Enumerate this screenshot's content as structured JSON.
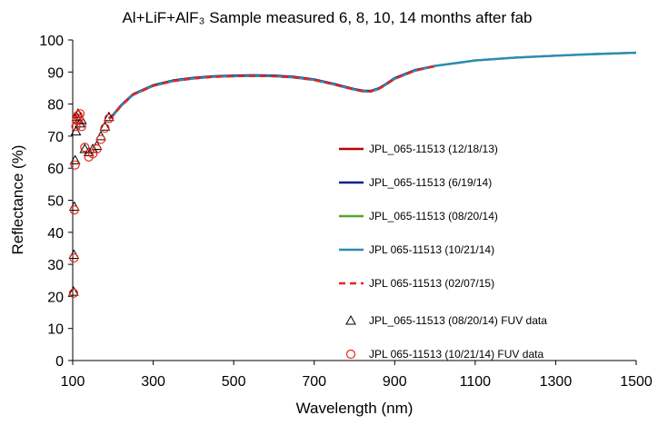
{
  "chart_data": {
    "type": "line",
    "title": "Al+LiF+AlF₃  Sample measured 6, 8, 10, 14 months after fab",
    "xlabel": "Wavelength (nm)",
    "ylabel": "Reflectance (%)",
    "xlim": [
      100,
      1500
    ],
    "ylim": [
      0,
      100
    ],
    "xticks": [
      "100",
      "300",
      "500",
      "700",
      "900",
      "1100",
      "1300",
      "1500"
    ],
    "yticks": [
      "0",
      "10",
      "20",
      "30",
      "40",
      "50",
      "60",
      "70",
      "80",
      "90",
      "100"
    ],
    "grid": false,
    "legend_position": "right",
    "series": [
      {
        "name": "JPL_065-11513 (12/18/13)",
        "kind": "line",
        "color": "#c00000",
        "dash": "solid",
        "x": [
          190,
          200,
          220,
          250,
          300,
          350,
          400,
          450,
          500,
          550,
          600,
          650,
          700,
          750,
          780,
          800,
          820,
          840,
          860,
          880,
          900,
          950,
          1000
        ],
        "y": [
          75.5,
          76.5,
          79.5,
          83.0,
          85.8,
          87.3,
          88.1,
          88.6,
          88.8,
          88.9,
          88.8,
          88.4,
          87.6,
          86.2,
          85.2,
          84.6,
          84.1,
          84.0,
          84.8,
          86.3,
          88.0,
          90.5,
          91.8
        ]
      },
      {
        "name": "JPL_065-11513 (6/19/14)",
        "kind": "line",
        "color": "#002090",
        "dash": "solid",
        "x": [
          190,
          200,
          220,
          250,
          300,
          350,
          400,
          450,
          500,
          550,
          600,
          650,
          700,
          750,
          780,
          800,
          820,
          840,
          860,
          880,
          900,
          950,
          1000
        ],
        "y": [
          75.6,
          76.6,
          79.6,
          83.1,
          85.9,
          87.4,
          88.2,
          88.7,
          88.9,
          89.0,
          88.9,
          88.5,
          87.7,
          86.3,
          85.3,
          84.7,
          84.2,
          84.1,
          84.9,
          86.4,
          88.1,
          90.6,
          91.9
        ]
      },
      {
        "name": "JPL_065-11513 (08/20/14)",
        "kind": "line",
        "color": "#4ea72e",
        "dash": "solid",
        "x": [
          190,
          200,
          220,
          250,
          300,
          350,
          400,
          450,
          500,
          550,
          600,
          650,
          700,
          750,
          780,
          800,
          820,
          840,
          860,
          880,
          900,
          950,
          1000,
          1100,
          1200,
          1300,
          1400,
          1500
        ],
        "y": [
          75.4,
          76.4,
          79.4,
          82.9,
          85.7,
          87.2,
          88.0,
          88.5,
          88.7,
          88.8,
          88.7,
          88.3,
          87.5,
          86.1,
          85.1,
          84.5,
          84.0,
          83.9,
          84.7,
          86.2,
          87.9,
          90.4,
          91.9,
          93.6,
          94.5,
          95.1,
          95.6,
          96.0
        ]
      },
      {
        "name": "JPL 065-11513 (10/21/14)",
        "kind": "line",
        "color": "#2e8bb8",
        "dash": "solid",
        "x": [
          190,
          200,
          220,
          250,
          300,
          350,
          400,
          450,
          500,
          550,
          600,
          650,
          700,
          750,
          780,
          800,
          820,
          840,
          860,
          880,
          900,
          950,
          1000,
          1100,
          1200,
          1300,
          1400,
          1500
        ],
        "y": [
          75.4,
          76.4,
          79.4,
          82.9,
          85.7,
          87.2,
          88.0,
          88.5,
          88.7,
          88.8,
          88.7,
          88.3,
          87.5,
          86.1,
          85.1,
          84.5,
          84.0,
          83.9,
          84.7,
          86.2,
          87.9,
          90.4,
          91.9,
          93.6,
          94.5,
          95.1,
          95.6,
          96.0
        ]
      },
      {
        "name": "JPL 065-11513 (02/07/15)",
        "kind": "line",
        "color": "#e8251b",
        "dash": "dashed",
        "x": [
          190,
          200,
          220,
          250,
          300,
          350,
          400,
          450,
          500,
          550,
          600,
          650,
          700,
          750,
          780,
          800,
          820,
          840,
          860,
          880,
          900,
          950,
          1000
        ],
        "y": [
          75.4,
          76.4,
          79.4,
          82.9,
          85.7,
          87.2,
          88.0,
          88.5,
          88.7,
          88.8,
          88.7,
          88.3,
          87.5,
          86.1,
          85.1,
          84.5,
          84.0,
          83.9,
          84.7,
          86.2,
          87.9,
          90.4,
          91.8
        ]
      },
      {
        "name": "JPL_065-11513 (08/20/14) FUV data",
        "kind": "marker",
        "marker": "triangle",
        "color": "#000000",
        "x": [
          102,
          103,
          104,
          106,
          108,
          110,
          113,
          115,
          118,
          122,
          130,
          140,
          150,
          160,
          170,
          180,
          190
        ],
        "y": [
          21.5,
          33,
          48,
          62.5,
          71.5,
          76,
          77,
          75,
          74,
          75,
          66,
          65,
          66,
          67,
          70,
          73,
          76
        ]
      },
      {
        "name": "JPL 065-11513 (10/21/14) FUV data",
        "kind": "marker",
        "marker": "circle",
        "color": "#e8251b",
        "x": [
          102,
          103,
          104,
          106,
          108,
          110,
          113,
          115,
          118,
          122,
          130,
          140,
          150,
          160,
          170,
          180,
          190
        ],
        "y": [
          21,
          32,
          47,
          61,
          73,
          75,
          76.5,
          75.5,
          77,
          73,
          66.5,
          63.5,
          64.5,
          66,
          69,
          72.5,
          75.5
        ]
      }
    ]
  }
}
